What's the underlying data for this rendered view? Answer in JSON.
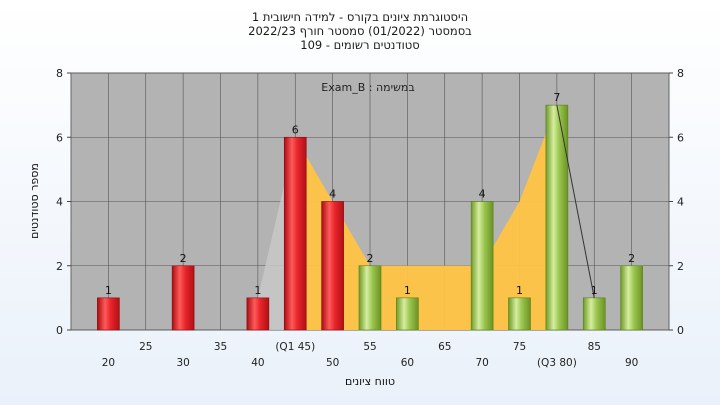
{
  "chart_data": {
    "type": "bar",
    "title_lines": [
      "היסטוגרמת ציונים בקורס - למידה חישובית 1",
      "בסמסטר  (01/2022)  סמסטר חורף  2022/23",
      "סטודנטים רשומים - 109"
    ],
    "annotation": "במשימה : Exam_B",
    "xlabel": "טווח ציונים",
    "ylabel": "מספר סטודנטים",
    "ylim": [
      0,
      8
    ],
    "y_ticks": [
      "0",
      "2",
      "4",
      "6",
      "8"
    ],
    "xlim": [
      15,
      95
    ],
    "x_ticks": [
      {
        "x": 20,
        "label": "20"
      },
      {
        "x": 25,
        "label": "25"
      },
      {
        "x": 30,
        "label": "30"
      },
      {
        "x": 35,
        "label": "35"
      },
      {
        "x": 40,
        "label": "40"
      },
      {
        "x": 45,
        "label": "(Q1 45)"
      },
      {
        "x": 50,
        "label": "50"
      },
      {
        "x": 55,
        "label": "55"
      },
      {
        "x": 60,
        "label": "60"
      },
      {
        "x": 65,
        "label": "65"
      },
      {
        "x": 70,
        "label": "70"
      },
      {
        "x": 75,
        "label": "75"
      },
      {
        "x": 80,
        "label": "(Q3 80)"
      },
      {
        "x": 85,
        "label": "85"
      },
      {
        "x": 90,
        "label": "90"
      }
    ],
    "bars": [
      {
        "x": 20,
        "value": 1,
        "label": "1",
        "color": "red"
      },
      {
        "x": 30,
        "value": 2,
        "label": "2",
        "color": "red"
      },
      {
        "x": 40,
        "value": 1,
        "label": "1",
        "color": "red"
      },
      {
        "x": 45,
        "value": 6,
        "label": "6",
        "color": "red"
      },
      {
        "x": 50,
        "value": 4,
        "label": "4",
        "color": "red"
      },
      {
        "x": 55,
        "value": 2,
        "label": "2",
        "color": "green"
      },
      {
        "x": 60,
        "value": 1,
        "label": "1",
        "color": "green"
      },
      {
        "x": 70,
        "value": 4,
        "label": "4",
        "color": "green"
      },
      {
        "x": 75,
        "value": 1,
        "label": "1",
        "color": "green"
      },
      {
        "x": 80,
        "value": 7,
        "label": "7",
        "color": "green"
      },
      {
        "x": 85,
        "value": 1,
        "label": "1",
        "color": "green"
      },
      {
        "x": 90,
        "value": 2,
        "label": "2",
        "color": "green"
      }
    ],
    "band": {
      "upper": [
        [
          45,
          6
        ],
        [
          50,
          4
        ],
        [
          55,
          2
        ],
        [
          60,
          2
        ],
        [
          65,
          2
        ],
        [
          70,
          2
        ],
        [
          75,
          4
        ],
        [
          80,
          7
        ]
      ],
      "lower": [
        [
          45,
          0
        ],
        [
          80,
          0
        ]
      ],
      "color": "#ffc445"
    },
    "shadow": {
      "upper": [
        [
          40,
          1
        ],
        [
          45,
          6
        ]
      ],
      "color": "#c8c8c8"
    },
    "trend_line": [
      [
        80,
        7
      ],
      [
        85,
        1
      ]
    ],
    "colors": {
      "plot_background": "#b3b3b3",
      "grid": "#555555",
      "red_bar": "#e8252b",
      "green_bar": "#95c04a"
    },
    "grid": true
  }
}
